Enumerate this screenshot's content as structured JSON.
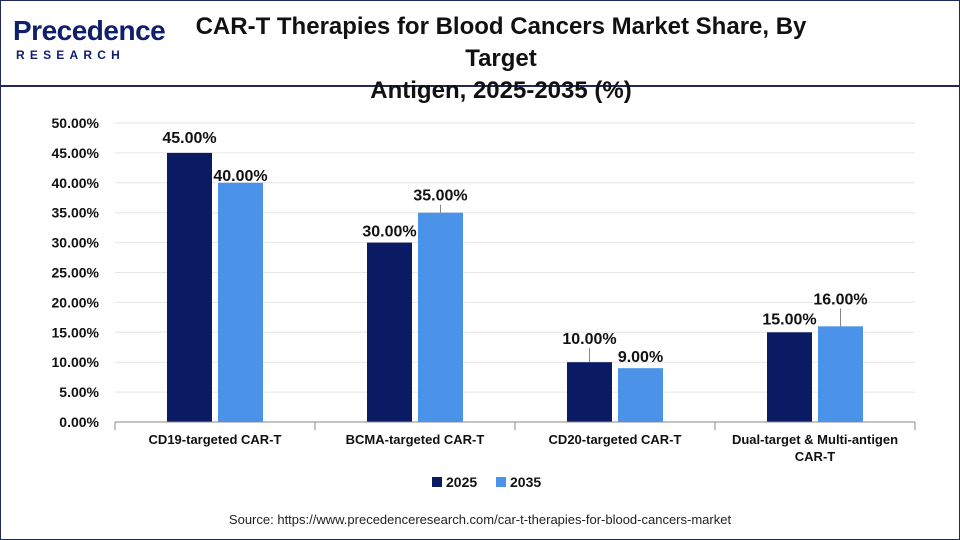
{
  "header": {
    "logo_word": "Precedence",
    "logo_sub": "RESEARCH",
    "title_line1": "CAR-T Therapies for Blood Cancers Market Share, By Target",
    "title_line2": "Antigen, 2025-2035 (%)"
  },
  "source": "Source: https://www.precedenceresearch.com/car-t-therapies-for-blood-cancers-market",
  "colors": {
    "series_2025": "#0b1b63",
    "series_2035": "#4a93e8",
    "grid": "#e6e6e6",
    "axis": "#888888"
  },
  "chart_data": {
    "type": "bar",
    "title": "CAR-T Therapies for Blood Cancers Market Share, By Target Antigen, 2025-2035 (%)",
    "categories": [
      "CD19-targeted CAR-T",
      "BCMA-targeted CAR-T",
      "CD20-targeted CAR-T",
      [
        "Dual-target & Multi-antigen",
        "CAR-T"
      ]
    ],
    "series": [
      {
        "name": "2025",
        "values": [
          45,
          30,
          10,
          15
        ],
        "labels": [
          "45.00%",
          "30.00%",
          "10.00%",
          "15.00%"
        ]
      },
      {
        "name": "2035",
        "values": [
          40,
          35,
          9,
          16
        ],
        "labels": [
          "40.00%",
          "35.00%",
          "9.00%",
          "16.00%"
        ]
      }
    ],
    "ylim": [
      0,
      50
    ],
    "yticks": [
      "0.00%",
      "5.00%",
      "10.00%",
      "15.00%",
      "20.00%",
      "25.00%",
      "30.00%",
      "35.00%",
      "40.00%",
      "45.00%",
      "50.00%"
    ],
    "grid": true,
    "legend": "bottom"
  }
}
